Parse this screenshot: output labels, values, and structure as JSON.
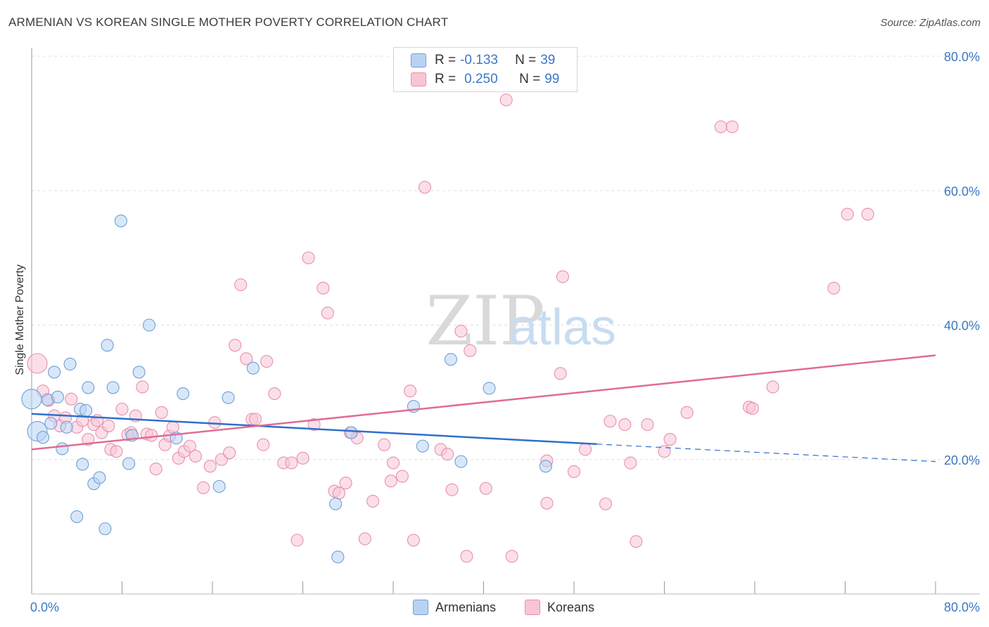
{
  "title": "ARMENIAN VS KOREAN SINGLE MOTHER POVERTY CORRELATION CHART",
  "source": "Source: ZipAtlas.com",
  "legend": [
    {
      "r_label": "R =",
      "r_value": "-0.133",
      "n_label": "N =",
      "n_value": "39"
    },
    {
      "r_label": "R =",
      "r_value": "0.250",
      "n_label": "N =",
      "n_value": "99"
    }
  ],
  "bottom_legend": [
    "Armenians",
    "Koreans"
  ],
  "colors": {
    "armenians_fill": "#b8d3f2",
    "armenians_stroke": "#6f9fd8",
    "armenians_line": "#2f6fcc",
    "koreans_fill": "#f8c5d5",
    "koreans_stroke": "#e98fae",
    "koreans_line": "#e06c94",
    "tick_color": "#3b78c4",
    "grid": "#e0e0e0"
  },
  "chart_data": {
    "type": "scatter",
    "title": "ARMENIAN VS KOREAN SINGLE MOTHER POVERTY CORRELATION CHART",
    "xlabel": "",
    "ylabel": "Single Mother Poverty",
    "xlim": [
      0,
      0.8
    ],
    "ylim": [
      0,
      0.8
    ],
    "x_tick_labels": [
      "0.0%",
      "80.0%"
    ],
    "y_tick_labels": [
      "20.0%",
      "40.0%",
      "60.0%",
      "80.0%"
    ],
    "y_ticks": [
      0.2,
      0.4,
      0.6,
      0.8
    ],
    "grid": true,
    "watermark": "ZIPatlas",
    "series": [
      {
        "name": "Armenians",
        "R": -0.133,
        "N": 39,
        "trend": {
          "x0": 0.0,
          "y0": 0.268,
          "x1": 0.5,
          "y1": 0.223,
          "dashed_to_x": 0.8,
          "dashed_y": 0.197
        },
        "points": [
          [
            0.0,
            0.29
          ],
          [
            0.005,
            0.242
          ],
          [
            0.01,
            0.233
          ],
          [
            0.014,
            0.289
          ],
          [
            0.017,
            0.254
          ],
          [
            0.02,
            0.33
          ],
          [
            0.023,
            0.293
          ],
          [
            0.027,
            0.216
          ],
          [
            0.031,
            0.248
          ],
          [
            0.034,
            0.342
          ],
          [
            0.04,
            0.115
          ],
          [
            0.043,
            0.275
          ],
          [
            0.045,
            0.193
          ],
          [
            0.048,
            0.273
          ],
          [
            0.05,
            0.307
          ],
          [
            0.055,
            0.164
          ],
          [
            0.06,
            0.173
          ],
          [
            0.065,
            0.097
          ],
          [
            0.067,
            0.37
          ],
          [
            0.072,
            0.307
          ],
          [
            0.079,
            0.555
          ],
          [
            0.086,
            0.194
          ],
          [
            0.089,
            0.236
          ],
          [
            0.095,
            0.33
          ],
          [
            0.104,
            0.4
          ],
          [
            0.128,
            0.232
          ],
          [
            0.134,
            0.298
          ],
          [
            0.166,
            0.16
          ],
          [
            0.174,
            0.292
          ],
          [
            0.196,
            0.336
          ],
          [
            0.269,
            0.134
          ],
          [
            0.271,
            0.055
          ],
          [
            0.283,
            0.24
          ],
          [
            0.338,
            0.279
          ],
          [
            0.346,
            0.22
          ],
          [
            0.371,
            0.349
          ],
          [
            0.38,
            0.197
          ],
          [
            0.405,
            0.306
          ],
          [
            0.455,
            0.19
          ]
        ]
      },
      {
        "name": "Koreans",
        "R": 0.25,
        "N": 99,
        "trend": {
          "x0": 0.0,
          "y0": 0.215,
          "x1": 0.8,
          "y1": 0.355
        },
        "points": [
          [
            0.005,
            0.343
          ],
          [
            0.01,
            0.302
          ],
          [
            0.015,
            0.288
          ],
          [
            0.02,
            0.265
          ],
          [
            0.025,
            0.25
          ],
          [
            0.03,
            0.262
          ],
          [
            0.035,
            0.29
          ],
          [
            0.04,
            0.248
          ],
          [
            0.045,
            0.258
          ],
          [
            0.05,
            0.23
          ],
          [
            0.055,
            0.252
          ],
          [
            0.058,
            0.258
          ],
          [
            0.062,
            0.24
          ],
          [
            0.068,
            0.25
          ],
          [
            0.07,
            0.215
          ],
          [
            0.075,
            0.212
          ],
          [
            0.08,
            0.275
          ],
          [
            0.085,
            0.237
          ],
          [
            0.088,
            0.24
          ],
          [
            0.092,
            0.265
          ],
          [
            0.098,
            0.308
          ],
          [
            0.102,
            0.238
          ],
          [
            0.106,
            0.236
          ],
          [
            0.11,
            0.186
          ],
          [
            0.115,
            0.27
          ],
          [
            0.118,
            0.222
          ],
          [
            0.122,
            0.235
          ],
          [
            0.125,
            0.248
          ],
          [
            0.13,
            0.202
          ],
          [
            0.135,
            0.212
          ],
          [
            0.14,
            0.22
          ],
          [
            0.145,
            0.205
          ],
          [
            0.152,
            0.158
          ],
          [
            0.158,
            0.19
          ],
          [
            0.162,
            0.255
          ],
          [
            0.168,
            0.2
          ],
          [
            0.175,
            0.21
          ],
          [
            0.18,
            0.37
          ],
          [
            0.185,
            0.46
          ],
          [
            0.19,
            0.35
          ],
          [
            0.195,
            0.26
          ],
          [
            0.198,
            0.26
          ],
          [
            0.205,
            0.222
          ],
          [
            0.208,
            0.346
          ],
          [
            0.215,
            0.298
          ],
          [
            0.223,
            0.195
          ],
          [
            0.23,
            0.195
          ],
          [
            0.235,
            0.08
          ],
          [
            0.24,
            0.202
          ],
          [
            0.245,
            0.5
          ],
          [
            0.25,
            0.252
          ],
          [
            0.258,
            0.455
          ],
          [
            0.262,
            0.418
          ],
          [
            0.268,
            0.153
          ],
          [
            0.272,
            0.15
          ],
          [
            0.278,
            0.165
          ],
          [
            0.282,
            0.24
          ],
          [
            0.288,
            0.232
          ],
          [
            0.295,
            0.082
          ],
          [
            0.302,
            0.138
          ],
          [
            0.312,
            0.222
          ],
          [
            0.318,
            0.168
          ],
          [
            0.32,
            0.195
          ],
          [
            0.328,
            0.175
          ],
          [
            0.335,
            0.302
          ],
          [
            0.338,
            0.08
          ],
          [
            0.348,
            0.605
          ],
          [
            0.362,
            0.215
          ],
          [
            0.368,
            0.208
          ],
          [
            0.372,
            0.155
          ],
          [
            0.38,
            0.391
          ],
          [
            0.385,
            0.056
          ],
          [
            0.388,
            0.362
          ],
          [
            0.402,
            0.157
          ],
          [
            0.42,
            0.735
          ],
          [
            0.425,
            0.056
          ],
          [
            0.456,
            0.198
          ],
          [
            0.456,
            0.135
          ],
          [
            0.468,
            0.328
          ],
          [
            0.47,
            0.472
          ],
          [
            0.48,
            0.182
          ],
          [
            0.49,
            0.215
          ],
          [
            0.508,
            0.134
          ],
          [
            0.512,
            0.257
          ],
          [
            0.525,
            0.252
          ],
          [
            0.535,
            0.078
          ],
          [
            0.545,
            0.252
          ],
          [
            0.56,
            0.212
          ],
          [
            0.565,
            0.23
          ],
          [
            0.58,
            0.27
          ],
          [
            0.61,
            0.695
          ],
          [
            0.62,
            0.695
          ],
          [
            0.635,
            0.278
          ],
          [
            0.638,
            0.276
          ],
          [
            0.656,
            0.308
          ],
          [
            0.71,
            0.455
          ],
          [
            0.722,
            0.565
          ],
          [
            0.74,
            0.565
          ],
          [
            0.53,
            0.195
          ]
        ]
      }
    ]
  }
}
